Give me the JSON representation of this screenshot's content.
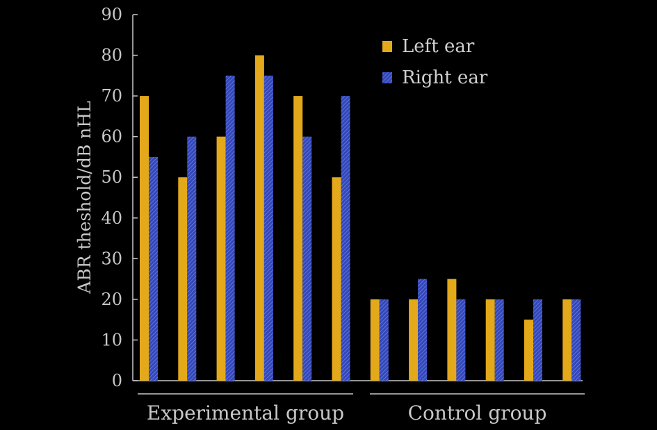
{
  "chart_data": {
    "type": "bar",
    "ylabel": "ABR theshold/dB nHL",
    "xlabel": "",
    "ylim": [
      0,
      90
    ],
    "yticks": [
      "0",
      "10",
      "20",
      "30",
      "40",
      "50",
      "60",
      "70",
      "80",
      "90"
    ],
    "grid": false,
    "legend_position": "top-right",
    "groups": [
      {
        "label": "Experimental group",
        "pairs": 6
      },
      {
        "label": "Control group",
        "pairs": 6
      }
    ],
    "series": [
      {
        "name": "Left ear",
        "color": "#e3a91a",
        "fill": "solid",
        "values": [
          70,
          50,
          60,
          80,
          70,
          50,
          20,
          20,
          25,
          20,
          15,
          20
        ]
      },
      {
        "name": "Right ear",
        "color": "#3347b8",
        "fill": "hatched",
        "values": [
          55,
          60,
          75,
          75,
          60,
          70,
          20,
          25,
          20,
          20,
          20,
          20
        ]
      }
    ]
  }
}
